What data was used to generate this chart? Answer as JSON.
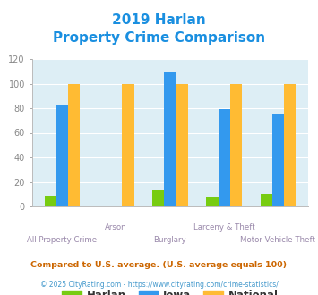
{
  "title_line1": "2019 Harlan",
  "title_line2": "Property Crime Comparison",
  "title_color": "#1a8fe0",
  "categories": [
    "All Property Crime",
    "Arson",
    "Burglary",
    "Larceny & Theft",
    "Motor Vehicle Theft"
  ],
  "harlan": [
    9,
    0,
    13,
    8,
    10
  ],
  "iowa": [
    82,
    0,
    109,
    79,
    75
  ],
  "national": [
    100,
    100,
    100,
    100,
    100
  ],
  "harlan_color": "#77cc11",
  "iowa_color": "#3399ee",
  "national_color": "#ffbb33",
  "bg_color": "#ddeef5",
  "ylim": [
    0,
    120
  ],
  "yticks": [
    0,
    20,
    40,
    60,
    80,
    100,
    120
  ],
  "x_labels_top": [
    "",
    "Arson",
    "",
    "Larceny & Theft",
    ""
  ],
  "x_labels_bottom": [
    "All Property Crime",
    "",
    "Burglary",
    "",
    "Motor Vehicle Theft"
  ],
  "legend_labels": [
    "Harlan",
    "Iowa",
    "National"
  ],
  "footnote1": "Compared to U.S. average. (U.S. average equals 100)",
  "footnote2": "© 2025 CityRating.com - https://www.cityrating.com/crime-statistics/",
  "footnote1_color": "#cc6600",
  "footnote2_color": "#4499cc",
  "xlabel_color": "#9988aa",
  "ytick_color": "#888888"
}
